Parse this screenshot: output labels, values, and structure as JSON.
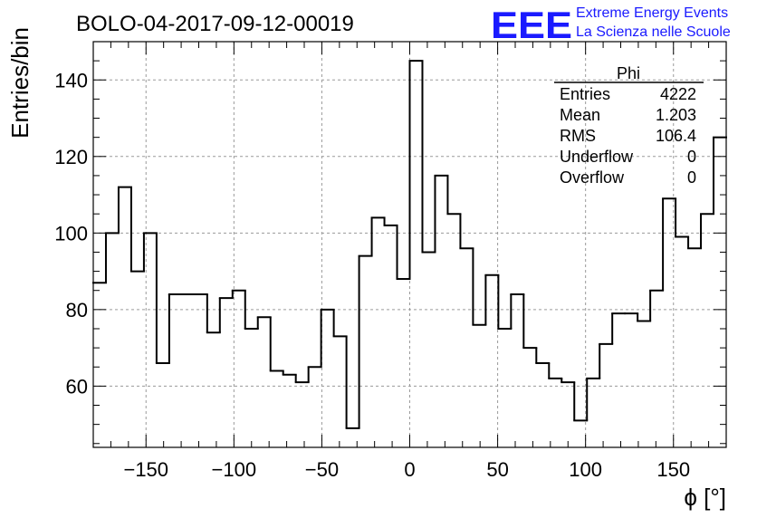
{
  "chart_data": {
    "type": "histogram",
    "title": "BOLO-04-2017-09-12-00019",
    "xlabel": "ϕ [°]",
    "ylabel": "Entries/bin",
    "xlim": [
      -180,
      180
    ],
    "ylim": [
      44,
      150
    ],
    "grid": true,
    "bin_edges": [
      -180,
      -172.8,
      -165.6,
      -158.4,
      -151.2,
      -144,
      -136.8,
      -129.6,
      -122.4,
      -115.2,
      -108,
      -100.8,
      -93.6,
      -86.4,
      -79.2,
      -72,
      -64.8,
      -57.6,
      -50.4,
      -43.2,
      -36,
      -28.8,
      -21.6,
      -14.4,
      -7.2,
      0,
      7.2,
      14.4,
      21.6,
      28.8,
      36,
      43.2,
      50.4,
      57.6,
      64.8,
      72,
      79.2,
      86.4,
      93.6,
      100.8,
      108,
      115.2,
      122.4,
      129.6,
      136.8,
      144,
      151.2,
      158.4,
      165.6,
      172.8,
      180
    ],
    "values": [
      87,
      100,
      112,
      90,
      100,
      66,
      84,
      84,
      84,
      74,
      83,
      85,
      75,
      78,
      64,
      63,
      61,
      65,
      80,
      73,
      49,
      94,
      104,
      102,
      88,
      145,
      95,
      115,
      105,
      96,
      76,
      89,
      75,
      84,
      70,
      66,
      62,
      61,
      51,
      62,
      71,
      79,
      79,
      77,
      85,
      109,
      99,
      96,
      105,
      125
    ],
    "x_ticks": [
      -150,
      -100,
      -50,
      0,
      50,
      100,
      150
    ],
    "x_tick_labels": [
      "−150",
      "−100",
      "−50",
      "0",
      "50",
      "100",
      "150"
    ],
    "y_ticks": [
      60,
      80,
      100,
      120,
      140
    ],
    "y_tick_labels": [
      "60",
      "80",
      "100",
      "120",
      "140"
    ],
    "stats_box": {
      "title": "Phi",
      "rows": [
        {
          "label": "Entries",
          "value": "4222"
        },
        {
          "label": "Mean",
          "value": "1.203"
        },
        {
          "label": "RMS",
          "value": "106.4"
        },
        {
          "label": "Underflow",
          "value": "0"
        },
        {
          "label": "Overflow",
          "value": "0"
        }
      ]
    }
  },
  "logo": {
    "mark": "EEE",
    "line1": "Extreme Energy Events",
    "line2": "La Scienza nelle Scuole",
    "color": "#1a1aff"
  }
}
